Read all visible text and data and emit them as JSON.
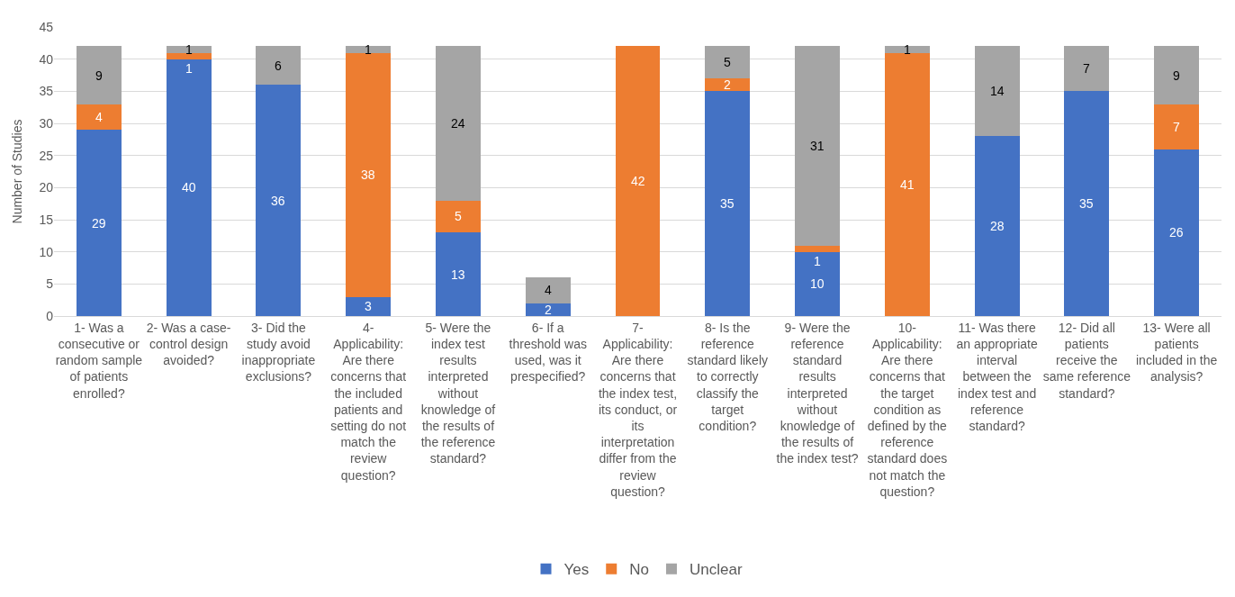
{
  "chart_data": {
    "type": "bar",
    "stacked": true,
    "ylabel": "Number of Studies",
    "categories": [
      "1- Was a consecutive or random sample of patients enrolled?",
      "2- Was a case-control design avoided?",
      "3- Did the study avoid inappropriate exclusions?",
      "4- Applicability: Are there concerns that the included patients and setting do not match the review question?",
      "5- Were the index test results interpreted without knowledge of the results of the reference standard?",
      "6- If a threshold was used, was it prespecified?",
      "7- Applicability: Are there concerns that the index test, its conduct, or its interpretation differ from the review question?",
      "8- Is the reference standard likely to correctly classify the target condition?",
      "9- Were the reference standard results interpreted without knowledge of the results of the index test?",
      "10- Applicability: Are there concerns that the target condition as defined by the reference standard does not match the question?",
      "11- Was there an appropriate interval between the index test and reference standard?",
      "12- Did all patients receive the same reference standard?",
      "13- Were all patients included in the analysis?"
    ],
    "series": [
      {
        "name": "Yes",
        "color": "#4472c4",
        "values": [
          29,
          40,
          36,
          3,
          13,
          2,
          null,
          35,
          10,
          null,
          28,
          35,
          26
        ]
      },
      {
        "name": "No",
        "color": "#ed7d31",
        "values": [
          4,
          1,
          null,
          38,
          5,
          null,
          42,
          2,
          1,
          41,
          null,
          null,
          7
        ]
      },
      {
        "name": "Unclear",
        "color": "#a5a5a5",
        "values": [
          9,
          1,
          6,
          1,
          24,
          4,
          null,
          5,
          31,
          1,
          14,
          7,
          9
        ]
      }
    ],
    "ylim": [
      0,
      45
    ],
    "yticks": [
      0,
      5,
      10,
      15,
      20,
      25,
      30,
      35,
      40,
      45
    ],
    "grid": "y",
    "legend": "bottom",
    "data_labels": true
  }
}
